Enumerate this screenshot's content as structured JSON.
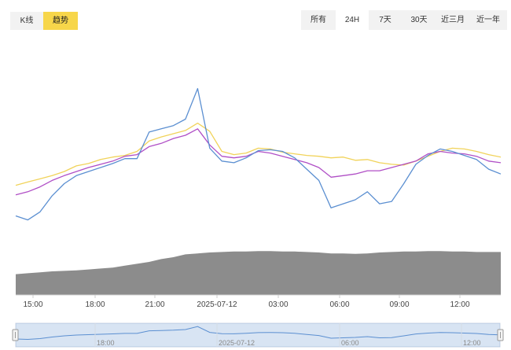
{
  "toolbar": {
    "left_tabs": [
      {
        "label": "K线",
        "active": false
      },
      {
        "label": "趋势",
        "active": true
      }
    ],
    "right_tabs": [
      {
        "label": "所有",
        "active": false
      },
      {
        "label": "24H",
        "active": true
      },
      {
        "label": "7天",
        "active": false
      },
      {
        "label": "30天",
        "active": false
      },
      {
        "label": "近三月",
        "active": false
      },
      {
        "label": "近一年",
        "active": false
      }
    ]
  },
  "colors": {
    "accent": "#f7d64a",
    "series_blue": "#5b8fd1",
    "series_purple": "#b04fc6",
    "series_yellow": "#f1d35a",
    "volume": "#8c8c8c",
    "navigator_fill": "#dbe6f6"
  },
  "chart_data": {
    "type": "line",
    "x_ticks": [
      "15:00",
      "18:00",
      "21:00",
      "2025-07-12",
      "03:00",
      "06:00",
      "09:00",
      "12:00"
    ],
    "navigator_ticks": [
      "18:00",
      "2025-07-12",
      "06:00",
      "12:00"
    ],
    "series": [
      {
        "color": "#f1d35a",
        "values": [
          58,
          62,
          66,
          70,
          75,
          82,
          85,
          90,
          93,
          95,
          100,
          113,
          118,
          122,
          126,
          135,
          125,
          100,
          96,
          98,
          104,
          103,
          99,
          97,
          95,
          94,
          92,
          93,
          89,
          90,
          86,
          84,
          83,
          88,
          94,
          100,
          104,
          103,
          100,
          96,
          93
        ]
      },
      {
        "color": "#b04fc6",
        "values": [
          46,
          50,
          56,
          64,
          70,
          75,
          80,
          84,
          88,
          94,
          96,
          106,
          110,
          116,
          120,
          128,
          108,
          94,
          92,
          94,
          100,
          98,
          94,
          90,
          86,
          80,
          68,
          70,
          72,
          76,
          76,
          80,
          84,
          88,
          97,
          100,
          98,
          97,
          94,
          88,
          86
        ]
      },
      {
        "color": "#5b8fd1",
        "values": [
          20,
          15,
          25,
          45,
          60,
          70,
          75,
          80,
          85,
          91,
          91,
          124,
          128,
          132,
          140,
          178,
          104,
          88,
          86,
          92,
          101,
          102,
          100,
          92,
          78,
          64,
          30,
          35,
          40,
          50,
          35,
          38,
          60,
          84,
          95,
          103,
          100,
          95,
          90,
          78,
          72
        ]
      }
    ],
    "volume": [
      44,
      46,
      48,
      50,
      51,
      52,
      54,
      56,
      58,
      62,
      66,
      70,
      76,
      80,
      86,
      88,
      90,
      91,
      92,
      92,
      93,
      93,
      92,
      92,
      91,
      90,
      88,
      88,
      87,
      88,
      90,
      91,
      92,
      92,
      93,
      93,
      92,
      92,
      91,
      91,
      91
    ]
  }
}
